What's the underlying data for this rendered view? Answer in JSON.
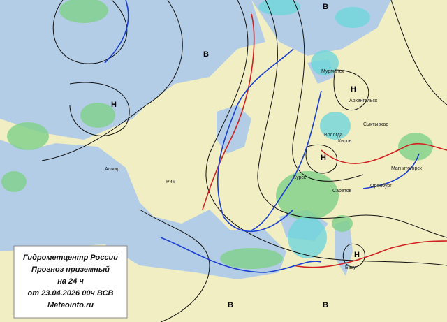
{
  "info_box": [
    "Гидрометцентр России",
    "Прогноз  приземный",
    "на 24 ч",
    "от 23.04.2026 00ч ВСВ",
    "Meteoinfo.ru"
  ],
  "pressure_centers": [
    "Н",
    "Н",
    "Н",
    "Н",
    "В",
    "В",
    "В",
    "В"
  ],
  "cities": [
    "Мурманск",
    "Архангельск",
    "Вологда",
    "Сыктывкар",
    "Киров",
    "Курск",
    "Саратов",
    "Оренбург",
    "Алжир",
    "Рим",
    "Баку",
    "Магнитогорск"
  ]
}
